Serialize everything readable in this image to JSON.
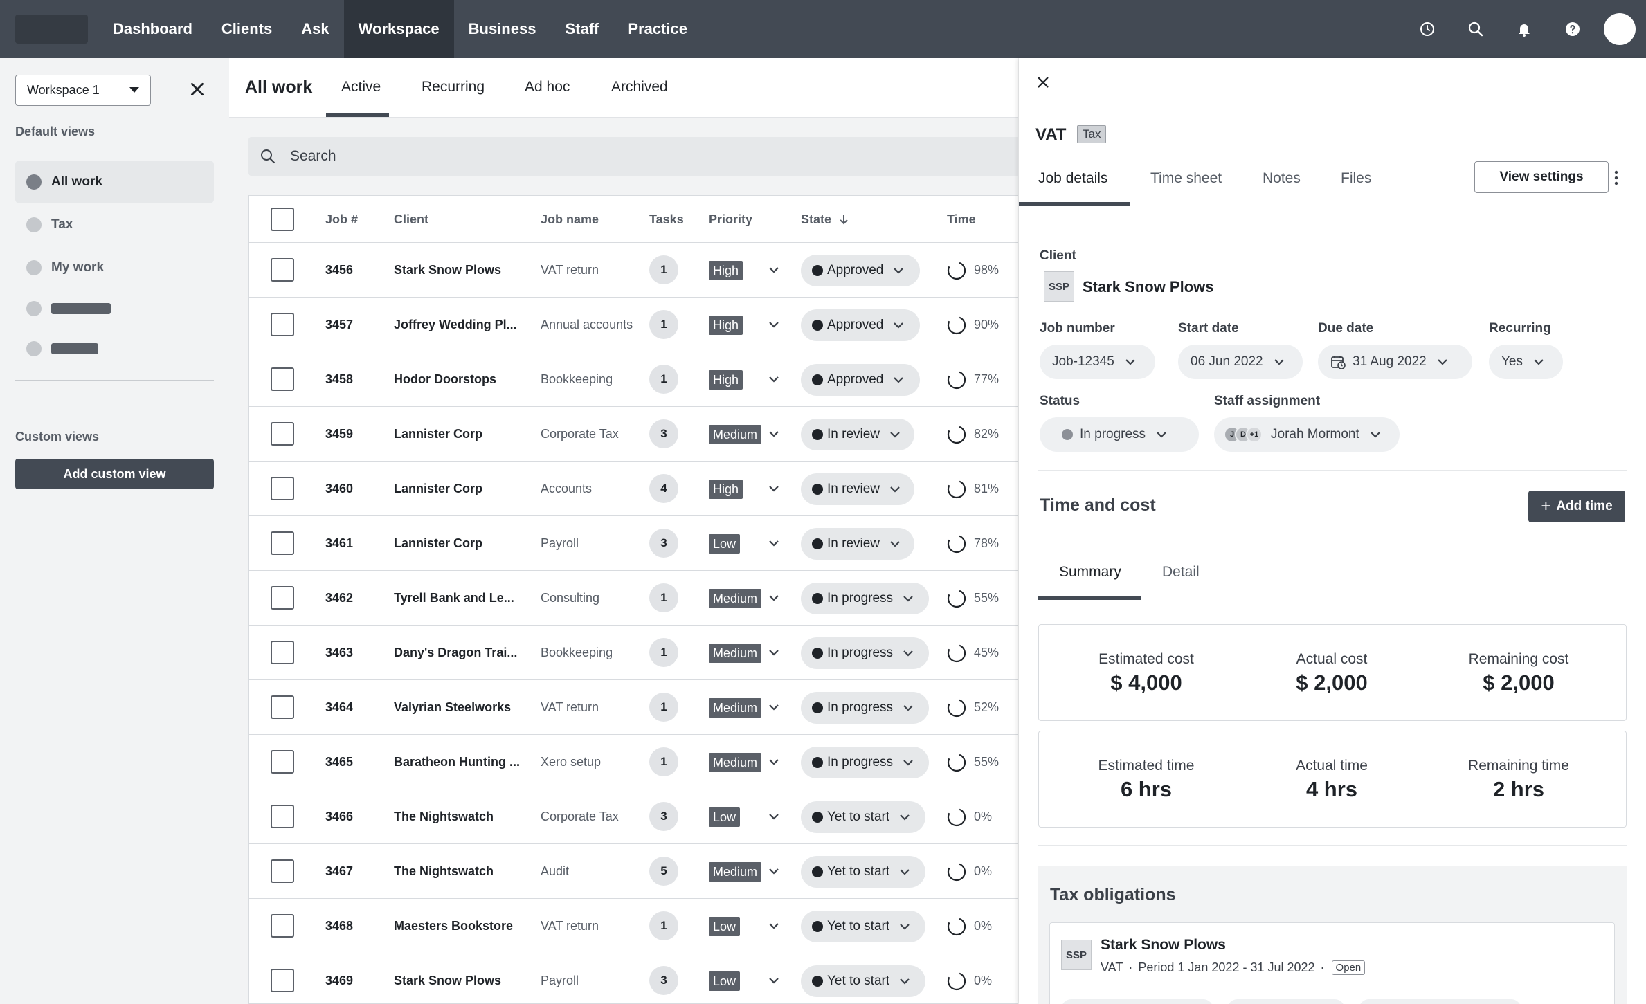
{
  "nav": {
    "items": [
      "Dashboard",
      "Clients",
      "Ask",
      "Workspace",
      "Business",
      "Staff",
      "Practice"
    ],
    "active": "Workspace",
    "icons": [
      "clock-icon",
      "search-icon",
      "bell-icon",
      "help-icon",
      "user-avatar"
    ]
  },
  "sidebar": {
    "workspace_select": "Workspace 1",
    "default_views_heading": "Default views",
    "items": [
      {
        "label": "All work",
        "active": true
      },
      {
        "label": "Tax",
        "active": false
      },
      {
        "label": "My work",
        "active": false
      }
    ],
    "custom_views_heading": "Custom views",
    "add_custom_view": "Add custom view"
  },
  "main": {
    "title": "All work",
    "tabs": [
      "Active",
      "Recurring",
      "Ad hoc",
      "Archived"
    ],
    "active_tab": "Active",
    "search_placeholder": "Search",
    "columns": [
      "Job #",
      "Client",
      "Job name",
      "Tasks",
      "Priority",
      "State",
      "Time"
    ],
    "rows": [
      {
        "job": "3456",
        "client": "Stark Snow Plows",
        "job_name": "VAT return",
        "tasks": "1",
        "priority": "High",
        "state": "Approved",
        "time": "98%"
      },
      {
        "job": "3457",
        "client": "Joffrey Wedding Pl...",
        "job_name": "Annual accounts",
        "tasks": "1",
        "priority": "High",
        "state": "Approved",
        "time": "90%"
      },
      {
        "job": "3458",
        "client": "Hodor Doorstops",
        "job_name": "Bookkeeping",
        "tasks": "1",
        "priority": "High",
        "state": "Approved",
        "time": "77%"
      },
      {
        "job": "3459",
        "client": "Lannister Corp",
        "job_name": "Corporate Tax",
        "tasks": "3",
        "priority": "Medium",
        "state": "In review",
        "time": "82%"
      },
      {
        "job": "3460",
        "client": "Lannister Corp",
        "job_name": "Accounts",
        "tasks": "4",
        "priority": "High",
        "state": "In review",
        "time": "81%"
      },
      {
        "job": "3461",
        "client": "Lannister Corp",
        "job_name": "Payroll",
        "tasks": "3",
        "priority": "Low",
        "state": "In review",
        "time": "78%"
      },
      {
        "job": "3462",
        "client": "Tyrell Bank and Le...",
        "job_name": "Consulting",
        "tasks": "1",
        "priority": "Medium",
        "state": "In progress",
        "time": "55%"
      },
      {
        "job": "3463",
        "client": "Dany's Dragon Trai...",
        "job_name": "Bookkeeping",
        "tasks": "1",
        "priority": "Medium",
        "state": "In progress",
        "time": "45%"
      },
      {
        "job": "3464",
        "client": "Valyrian Steelworks",
        "job_name": "VAT return",
        "tasks": "1",
        "priority": "Medium",
        "state": "In progress",
        "time": "52%"
      },
      {
        "job": "3465",
        "client": "Baratheon Hunting ...",
        "job_name": "Xero setup",
        "tasks": "1",
        "priority": "Medium",
        "state": "In progress",
        "time": "55%"
      },
      {
        "job": "3466",
        "client": "The Nightswatch",
        "job_name": "Corporate Tax",
        "tasks": "3",
        "priority": "Low",
        "state": "Yet to start",
        "time": "0%"
      },
      {
        "job": "3467",
        "client": "The Nightswatch",
        "job_name": "Audit",
        "tasks": "5",
        "priority": "Medium",
        "state": "Yet to start",
        "time": "0%"
      },
      {
        "job": "3468",
        "client": "Maesters Bookstore",
        "job_name": "VAT return",
        "tasks": "1",
        "priority": "Low",
        "state": "Yet to start",
        "time": "0%"
      },
      {
        "job": "3469",
        "client": "Stark Snow Plows",
        "job_name": "Payroll",
        "tasks": "3",
        "priority": "Low",
        "state": "Yet to start",
        "time": "0%"
      }
    ]
  },
  "panel": {
    "title": "VAT",
    "tag": "Tax",
    "tabs": [
      "Job details",
      "Time sheet",
      "Notes",
      "Files"
    ],
    "view_settings": "View settings",
    "client_label": "Client",
    "client_initials": "SSP",
    "client_name": "Stark Snow Plows",
    "job_number_label": "Job number",
    "job_number": "Job-12345",
    "start_date_label": "Start date",
    "start_date": "06 Jun 2022",
    "due_date_label": "Due date",
    "due_date": "31 Aug 2022",
    "recurring_label": "Recurring",
    "recurring": "Yes",
    "status_label": "Status",
    "status": "In progress",
    "staff_label": "Staff assignment",
    "staff_avatars": [
      "J",
      "D",
      "+1"
    ],
    "staff_name": "Jorah Mormont",
    "time_cost_title": "Time and cost",
    "add_time": "Add time",
    "summary_tabs": [
      "Summary",
      "Detail"
    ],
    "costs": [
      {
        "label": "Estimated cost",
        "value": "$ 4,000"
      },
      {
        "label": "Actual cost",
        "value": "$ 2,000"
      },
      {
        "label": "Remaining cost",
        "value": "$ 2,000"
      }
    ],
    "times": [
      {
        "label": "Estimated time",
        "value": "6 hrs"
      },
      {
        "label": "Actual time",
        "value": "4 hrs"
      },
      {
        "label": "Remaining time",
        "value": "2 hrs"
      }
    ],
    "tax_obligations_title": "Tax obligations",
    "tax_card": {
      "initials": "SSP",
      "name": "Stark Snow Plows",
      "type": "VAT",
      "period": "Period 1 Jan 2022 - 31 Jul 2022",
      "badge": "Open"
    }
  }
}
